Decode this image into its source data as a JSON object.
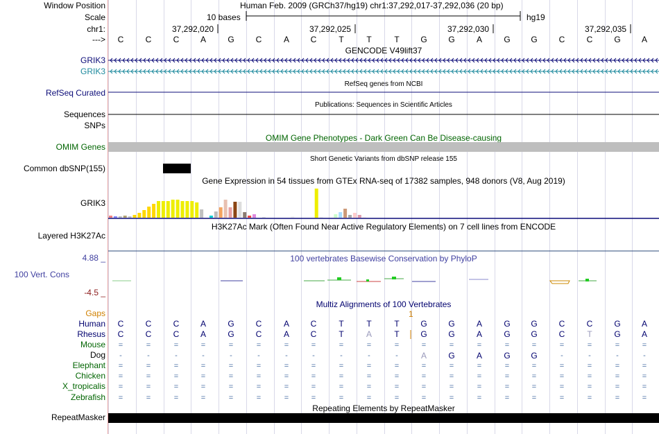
{
  "labels": {
    "window_position": "Window Position",
    "scale": "Scale",
    "chr": "chr1:",
    "arrow": "--->",
    "grik3_1": "GRIK3",
    "grik3_2": "GRIK3",
    "refseq": "RefSeq Curated",
    "sequences": "Sequences",
    "snps": "SNPs",
    "omim": "OMIM Genes",
    "dbsnp": "Common dbSNP(155)",
    "grik3_gtex": "GRIK3",
    "h3k27ac": "Layered H3K27Ac",
    "cons_max": "4.88 _",
    "cons_name": "100 Vert. Cons",
    "cons_min": "-4.5 _",
    "gaps": "Gaps",
    "species": [
      "Human",
      "Rhesus",
      "Mouse",
      "Dog",
      "Elephant",
      "Chicken",
      "X_tropicalis",
      "Zebrafish"
    ],
    "repeatmasker": "RepeatMasker"
  },
  "header": {
    "title": "Human Feb. 2009 (GRCh37/hg19)   chr1:37,292,017-37,292,036 (20 bp)",
    "scale_text": "10 bases",
    "assembly": "hg19",
    "coords": [
      "37,292,020",
      "37,292,025",
      "37,292,030",
      "37,292,035"
    ]
  },
  "track_titles": {
    "gencode": "GENCODE V49lift37",
    "refseq": "RefSeq genes from NCBI",
    "publications": "Publications: Sequences in Scientific Articles",
    "omim": "OMIM Gene Phenotypes - Dark Green Can Be Disease-causing",
    "dbsnp": "Short Genetic Variants from dbSNP release 155",
    "gtex": "Gene Expression in 54 tissues from GTEx RNA-seq of 17382 samples, 948 donors (V8, Aug 2019)",
    "h3k27ac": "H3K27Ac Mark (Often Found Near Active Regulatory Elements) on 7 cell lines from ENCODE",
    "phylop": "100 vertebrates Basewise Conservation by PhyloP",
    "multiz": "Multiz Alignments of 100 Vertebrates",
    "repeatmasker": "Repeating Elements by RepeatMasker"
  },
  "sequence": [
    "C",
    "C",
    "C",
    "A",
    "G",
    "C",
    "A",
    "C",
    "T",
    "T",
    "T",
    "G",
    "G",
    "A",
    "G",
    "G",
    "C",
    "C",
    "G",
    "A"
  ],
  "alignment": {
    "gap_marker": "1",
    "Rhesus": [
      "C",
      "C",
      "C",
      "A",
      "G",
      "C",
      "A",
      "C",
      "T",
      "A",
      "T",
      "G",
      "G",
      "A",
      "G",
      "G",
      "C",
      "T",
      "G",
      "A"
    ],
    "Mouse": [
      "=",
      "=",
      "=",
      "=",
      "=",
      "=",
      "=",
      "=",
      "=",
      "=",
      "=",
      "=",
      "=",
      "=",
      "=",
      "=",
      "=",
      "=",
      "=",
      "="
    ],
    "Dog": [
      "-",
      "-",
      "-",
      "-",
      "-",
      "-",
      "-",
      "-",
      "-",
      "-",
      "-",
      "A",
      "G",
      "A",
      "G",
      "G",
      "-",
      "-",
      "-",
      "-"
    ],
    "Elephant": [
      "=",
      "=",
      "=",
      "=",
      "=",
      "=",
      "=",
      "=",
      "=",
      "=",
      "=",
      "=",
      "=",
      "=",
      "=",
      "=",
      "=",
      "=",
      "=",
      "="
    ],
    "Chicken": [
      "=",
      "=",
      "=",
      "=",
      "=",
      "=",
      "=",
      "=",
      "=",
      "=",
      "=",
      "=",
      "=",
      "=",
      "=",
      "=",
      "=",
      "=",
      "=",
      "="
    ],
    "X_tropicalis": [
      "=",
      "=",
      "=",
      "=",
      "=",
      "=",
      "=",
      "=",
      "=",
      "=",
      "=",
      "=",
      "=",
      "=",
      "=",
      "=",
      "=",
      "=",
      "=",
      "="
    ],
    "Zebrafish": [
      "=",
      "=",
      "=",
      "=",
      "=",
      "=",
      "=",
      "=",
      "=",
      "=",
      "=",
      "=",
      "=",
      "=",
      "=",
      "=",
      "=",
      "=",
      "=",
      "="
    ]
  },
  "gtex_values": [
    3,
    2,
    2,
    3,
    2,
    4,
    7,
    11,
    16,
    20,
    24,
    24,
    24,
    26,
    26,
    24,
    24,
    24,
    22,
    12,
    0,
    3,
    9,
    15,
    26,
    15,
    23,
    23,
    8,
    3,
    5,
    0,
    1,
    0,
    0,
    0,
    0,
    0,
    2,
    0,
    0,
    0,
    0,
    42,
    1,
    0,
    0,
    5,
    8,
    13,
    4,
    7,
    4,
    1
  ],
  "gtex_colors": [
    "#f08080",
    "#8080ff",
    "#bbbbbb",
    "#b0a070",
    "#c0c0c0",
    "#ffd700",
    "#ffd700",
    "#ffd700",
    "#ffd700",
    "#ffd700",
    "#eeee00",
    "#eeee00",
    "#eeee00",
    "#eeee00",
    "#eeee00",
    "#eeee00",
    "#eeee00",
    "#eeee00",
    "#eeee00",
    "#c0c0c0",
    "#f0e68c",
    "#00ced1",
    "#bbbbbb",
    "#f4a460",
    "#e8c0b0",
    "#e8a0a0",
    "#8b4513",
    "#dddddd",
    "#8b7b70",
    "#ee4444",
    "#dd88dd",
    "#ffffff",
    "#dddddd",
    "#ffffff",
    "#ffffff",
    "#ffffff",
    "#ffffff",
    "#ffffff",
    "#eeeeee",
    "#ffffff",
    "#ffffff",
    "#ffffff",
    "#ffffff",
    "#eeee00",
    "#eeeeee",
    "#ffffff",
    "#ffffff",
    "#ccffcc",
    "#aaddff",
    "#cc9977",
    "#aaaaaa",
    "#ffcccc",
    "#dd99aa",
    "#ffeeee"
  ],
  "colors": {
    "omim_bar": "#bebebe",
    "omim_label": "#006400",
    "gencode_strand_1": "#0c0c78",
    "gencode_strand_2": "#1e8a9e",
    "refseq_label": "#0c0c78",
    "cons_label": "#4040a0",
    "gaps_label": "#d08000",
    "multiz_label": "#00006e"
  }
}
